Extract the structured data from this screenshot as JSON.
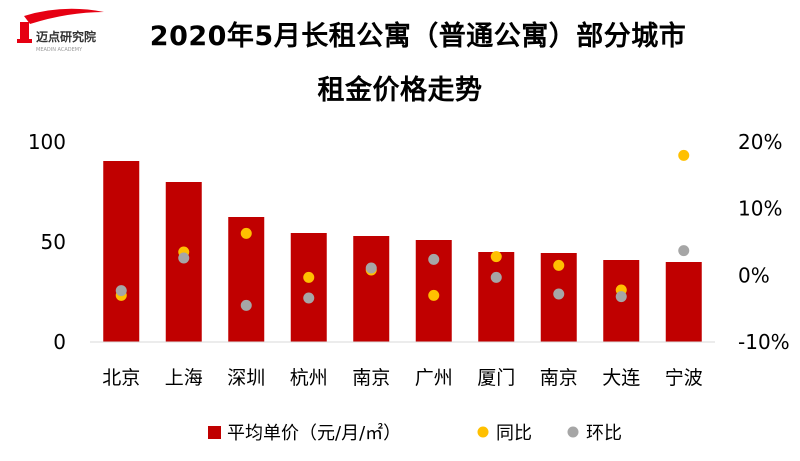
{
  "logo": {
    "name": "迈点研究院",
    "tagline": "MEADIN ACADEMY"
  },
  "title_line1": "2020年5月长租公寓（普通公寓）部分城市",
  "title_line2": "租金价格走势",
  "colors": {
    "bar": "#C00000",
    "yoy": "#FFC000",
    "mom": "#A6A6A6",
    "logo_red": "#E60012"
  },
  "chart_data": {
    "type": "bar",
    "categories": [
      "北京",
      "上海",
      "深圳",
      "杭州",
      "南京",
      "广州",
      "厦门",
      "南京",
      "大连",
      "宁波"
    ],
    "series": [
      {
        "name": "平均单价（元/月/㎡）",
        "kind": "bar",
        "axis": "left",
        "values": [
          90.5,
          80.0,
          62.5,
          54.5,
          53.0,
          51.0,
          45.0,
          44.5,
          41.0,
          40.0
        ]
      },
      {
        "name": "同比",
        "kind": "point",
        "axis": "right",
        "values": [
          -3.0,
          3.5,
          6.3,
          -0.3,
          0.8,
          -3.0,
          2.8,
          1.5,
          -2.2,
          18.0
        ]
      },
      {
        "name": "环比",
        "kind": "point",
        "axis": "right",
        "values": [
          -2.3,
          2.6,
          -4.5,
          -3.4,
          1.1,
          2.4,
          -0.3,
          -2.8,
          -3.2,
          3.7
        ]
      }
    ],
    "y_left": {
      "ticks": [
        "0",
        "50",
        "100"
      ],
      "ylim": [
        0,
        100
      ]
    },
    "y_right": {
      "ticks": [
        "-10%",
        "0%",
        "10%",
        "20%"
      ],
      "ylim": [
        -10,
        20
      ]
    },
    "legend_position": "bottom",
    "grid": false
  }
}
